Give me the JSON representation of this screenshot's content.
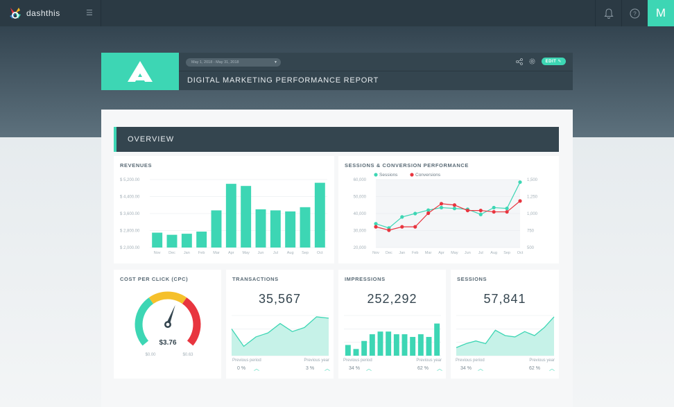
{
  "topbar": {
    "logo_text": "dashthis",
    "menu_icon": "hamburger-icon",
    "avatar_letter": "M"
  },
  "dashboard": {
    "date_range": "May 1, 2018 - May 31, 2018",
    "title": "DIGITAL MARKETING PERFORMANCE REPORT",
    "edit_label": "EDIT"
  },
  "overview_label": "OVERVIEW",
  "colors": {
    "accent": "#3dd6b4",
    "red": "#e8353f",
    "dark": "#34454f"
  },
  "revenues": {
    "title": "REVENUES",
    "chart_data": {
      "type": "bar",
      "categories": [
        "Nov",
        "Dec",
        "Jan",
        "Feb",
        "Mar",
        "Apr",
        "May",
        "Jun",
        "Jul",
        "Aug",
        "Sep",
        "Oct"
      ],
      "values": [
        2700,
        2600,
        2650,
        2750,
        3750,
        5000,
        4900,
        3800,
        3750,
        3700,
        3900,
        5050
      ],
      "ylim": [
        2000,
        5200
      ],
      "yticks": [
        "$ 2,000.00",
        "$ 2,800.00",
        "$ 3,600.00",
        "$ 4,400.00",
        "$ 5,200.00"
      ],
      "ytick_values": [
        2000,
        2800,
        3600,
        4400,
        5200
      ]
    }
  },
  "sessions_conv": {
    "title": "SESSIONS & CONVERSION PERFORMANCE",
    "chart_data": {
      "type": "line",
      "categories": [
        "Nov",
        "Dec",
        "Jan",
        "Feb",
        "Mar",
        "Apr",
        "May",
        "Jun",
        "Jul",
        "Aug",
        "Sep",
        "Oct"
      ],
      "series": [
        {
          "name": "Sessions",
          "axis": "left",
          "values": [
            34000,
            31500,
            38000,
            40000,
            42000,
            43500,
            43000,
            42500,
            39500,
            43500,
            43000,
            58500
          ]
        },
        {
          "name": "Conversions",
          "axis": "right",
          "values": [
            805,
            755,
            805,
            805,
            1005,
            1145,
            1125,
            1045,
            1045,
            1025,
            1025,
            1185
          ]
        }
      ],
      "ylim_left": [
        20000,
        60000
      ],
      "ylim_right": [
        500,
        1500
      ],
      "yticks_left": [
        "20,000",
        "30,000",
        "40,000",
        "50,000",
        "60,000"
      ],
      "yticks_left_values": [
        20000,
        30000,
        40000,
        50000,
        60000
      ],
      "yticks_right": [
        "500",
        "750",
        "1,000",
        "1,250",
        "1,500"
      ],
      "yticks_right_values": [
        500,
        750,
        1000,
        1250,
        1500
      ],
      "legend_placement": "top-left"
    }
  },
  "cpc": {
    "title": "COST PER CLICK (CPC)",
    "value": "$3.76",
    "min_label": "$0.00",
    "max_label": "$0.63",
    "chart_data": {
      "type": "gauge",
      "value": 0.58,
      "min": 0,
      "max": 1
    }
  },
  "transactions": {
    "title": "TRANSACTIONS",
    "value": "35,567",
    "prev_label": "Previous period",
    "prev_value": "0 %",
    "year_label": "Previous year",
    "year_value": "3 %",
    "chart_data": {
      "type": "area",
      "values": [
        40,
        14,
        28,
        34,
        48,
        36,
        42,
        58,
        56
      ]
    }
  },
  "impressions": {
    "title": "IMPRESSIONS",
    "value": "252,292",
    "prev_label": "Previous period",
    "prev_value": "34 %",
    "year_label": "Previous year",
    "year_value": "62 %",
    "chart_data": {
      "type": "bar",
      "values": [
        16,
        10,
        22,
        32,
        36,
        36,
        32,
        32,
        28,
        32,
        28,
        48
      ]
    }
  },
  "sessions": {
    "title": "SESSIONS",
    "value": "57,841",
    "prev_label": "Previous period",
    "prev_value": "34 %",
    "year_label": "Previous year",
    "year_value": "62 %",
    "chart_data": {
      "type": "area",
      "values": [
        12,
        18,
        22,
        18,
        38,
        30,
        28,
        36,
        30,
        42,
        58
      ]
    }
  }
}
